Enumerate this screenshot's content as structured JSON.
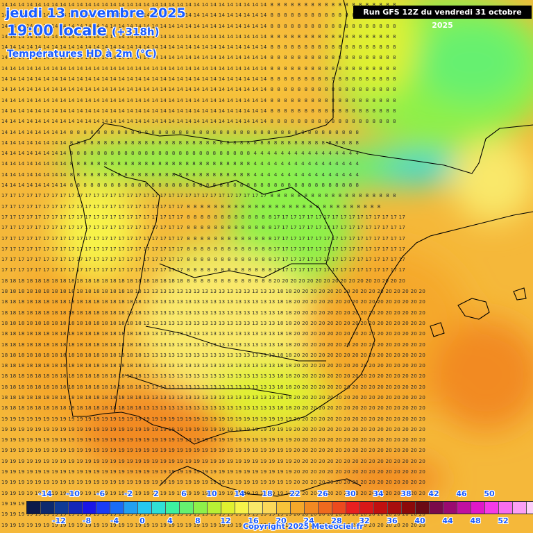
{
  "header": {
    "date": "jeudi 13 novembre 2025",
    "time": "19:00 locale",
    "lead": "(+318h)",
    "product": "Températures HD à 2m (°C)",
    "run": "Run GFS 12Z du vendredi 31 octobre 2025"
  },
  "legend": {
    "colors": [
      "#0c1a4a",
      "#0d2a6e",
      "#0f3a96",
      "#1427b8",
      "#1a16e6",
      "#1a3cf5",
      "#1a6cf5",
      "#22a0f0",
      "#25c8f0",
      "#30e0d6",
      "#3ef0a0",
      "#66f070",
      "#8ef04a",
      "#b8f035",
      "#e0f030",
      "#f7f34a",
      "#f9e86a",
      "#fbd85a",
      "#f7c33a",
      "#f5a82a",
      "#f28a22",
      "#ef6a1e",
      "#ec4a1e",
      "#e82020",
      "#d81818",
      "#c01010",
      "#a80e0e",
      "#8c0a0a",
      "#6a0a14",
      "#7a0a4a",
      "#9a0a70",
      "#c010a0",
      "#e018c8",
      "#f53ae8",
      "#f86ef0",
      "#fba0f6",
      "#fdd0fa",
      "#ffffff"
    ],
    "upper_labels": [
      "-14",
      "-10",
      "-6",
      "-2",
      "2",
      "6",
      "10",
      "14",
      "18",
      "22",
      "26",
      "30",
      "34",
      "38",
      "42",
      "46",
      "50"
    ],
    "lower_labels": [
      "-12",
      "-8",
      "-4",
      "0",
      "4",
      "8",
      "12",
      "16",
      "20",
      "24",
      "28",
      "32",
      "36",
      "40",
      "44",
      "48",
      "52"
    ]
  },
  "copyright": "Copyright 2025 Meteociel.fr"
}
